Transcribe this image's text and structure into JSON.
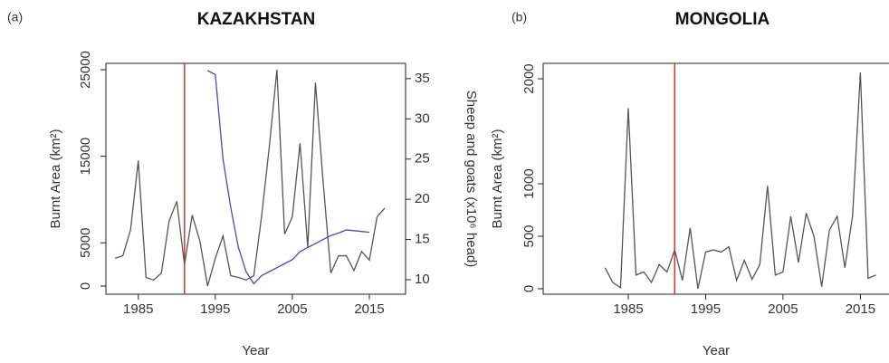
{
  "chart_data": [
    {
      "type": "line",
      "panel_label": "(a)",
      "title": "KAZAKHSTAN",
      "xlabel": "Year",
      "ylabel": "Burnt Area (km²)",
      "y2label": "Sheep and goats (x10⁶ head)",
      "x": [
        1982,
        1983,
        1984,
        1985,
        1986,
        1987,
        1988,
        1989,
        1990,
        1991,
        1992,
        1993,
        1994,
        1995,
        1996,
        1997,
        1998,
        1999,
        2000,
        2001,
        2002,
        2003,
        2004,
        2005,
        2006,
        2007,
        2008,
        2009,
        2010,
        2011,
        2012,
        2013,
        2014,
        2015,
        2016,
        2017
      ],
      "series": [
        {
          "color": "#555555",
          "values": [
            3200,
            3500,
            6500,
            14500,
            1000,
            700,
            1500,
            7500,
            9800,
            2500,
            8200,
            5200,
            0,
            3200,
            5800,
            1200,
            1000,
            700,
            1200,
            8000,
            16000,
            25000,
            6000,
            8000,
            16500,
            4500,
            23500,
            12000,
            1500,
            3500,
            3500,
            1800,
            4000,
            3000,
            8000,
            9000
          ]
        },
        {
          "color": "#4b4bb0",
          "axis": "y2",
          "values": [
            null,
            null,
            null,
            null,
            null,
            null,
            null,
            null,
            null,
            null,
            null,
            null,
            36,
            35.5,
            25,
            19,
            14,
            11,
            9.5,
            10.5,
            11,
            11.5,
            12,
            12.5,
            13.5,
            14,
            14.5,
            15,
            15.5,
            15.8,
            16.2,
            16.1,
            16,
            15.9,
            null,
            null
          ]
        }
      ],
      "reference_x": 1991,
      "reference_color": "#d9372a",
      "xlim": [
        1980.8,
        2019.7
      ],
      "xticks": [
        1985,
        1995,
        2005,
        2015
      ],
      "ylim": [
        -940,
        25730
      ],
      "yticks": [
        0,
        5000,
        15000,
        25000
      ],
      "y2lim": [
        8.2,
        36.9
      ],
      "y2ticks": [
        10,
        15,
        20,
        25,
        30,
        35
      ]
    },
    {
      "type": "line",
      "panel_label": "(b)",
      "title": "MONGOLIA",
      "xlabel": "Year",
      "ylabel": "Burnt Area (km²)",
      "x": [
        1982,
        1983,
        1984,
        1985,
        1986,
        1987,
        1988,
        1989,
        1990,
        1991,
        1992,
        1993,
        1994,
        1995,
        1996,
        1997,
        1998,
        1999,
        2000,
        2001,
        2002,
        2003,
        2004,
        2005,
        2006,
        2007,
        2008,
        2009,
        2010,
        2011,
        2012,
        2013,
        2014,
        2015,
        2016,
        2017
      ],
      "series": [
        {
          "color": "#555555",
          "values": [
            200,
            60,
            10,
            1720,
            130,
            160,
            60,
            230,
            160,
            370,
            80,
            580,
            0,
            350,
            370,
            350,
            400,
            80,
            270,
            90,
            230,
            980,
            130,
            160,
            690,
            250,
            720,
            500,
            20,
            560,
            690,
            200,
            700,
            2060,
            100,
            130
          ]
        }
      ],
      "reference_x": 1991,
      "reference_color": "#d9372a",
      "xlim": [
        1974,
        2018.7
      ],
      "xticks": [
        1985,
        1995,
        2005,
        2015
      ],
      "ylim": [
        -52,
        2147
      ],
      "yticks": [
        0,
        500,
        1000,
        2000
      ]
    }
  ]
}
